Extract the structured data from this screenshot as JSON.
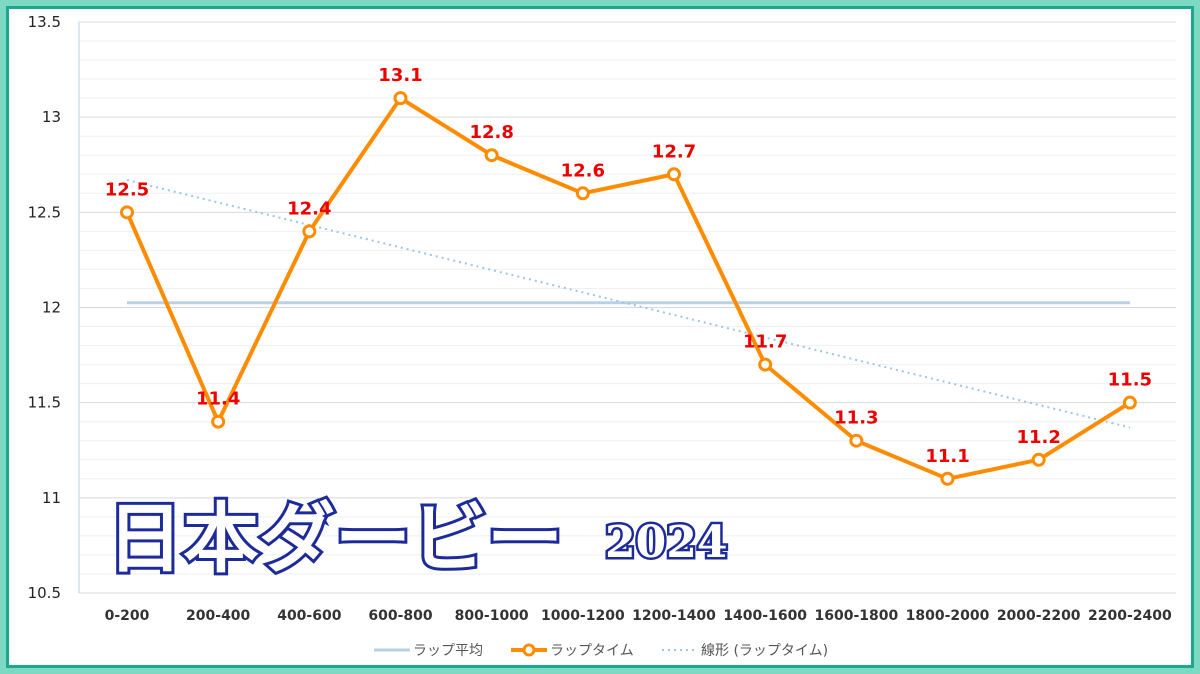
{
  "chart_data": {
    "type": "line",
    "title": "日本ダービー",
    "title_year": "2024",
    "categories": [
      "0-200",
      "200-400",
      "400-600",
      "600-800",
      "800-1000",
      "1000-1200",
      "1200-1400",
      "1400-1600",
      "1600-1800",
      "1800-2000",
      "2000-2200",
      "2200-2400"
    ],
    "series": [
      {
        "name": "ラップタイム",
        "values": [
          12.5,
          11.4,
          12.4,
          13.1,
          12.8,
          12.6,
          12.7,
          11.7,
          11.3,
          11.1,
          11.2,
          11.5
        ],
        "color": "#ff8c00",
        "data_labels": [
          "12.5",
          "11.4",
          "12.4",
          "13.1",
          "12.8",
          "12.6",
          "12.7",
          "11.7",
          "11.3",
          "11.1",
          "11.2",
          "11.5"
        ]
      }
    ],
    "average": {
      "name": "ラップ平均",
      "value": 12.025,
      "color": "#b8d0e8"
    },
    "trendline": {
      "name": "線形 (ラップタイム)",
      "start": 12.67,
      "end": 11.37,
      "color": "#9cc6e4"
    },
    "ylim": [
      10.5,
      13.5
    ],
    "yticks": [
      "10.5",
      "11",
      "11.5",
      "12",
      "12.5",
      "13",
      "13.5"
    ],
    "grid": true,
    "legend_position": "bottom"
  }
}
